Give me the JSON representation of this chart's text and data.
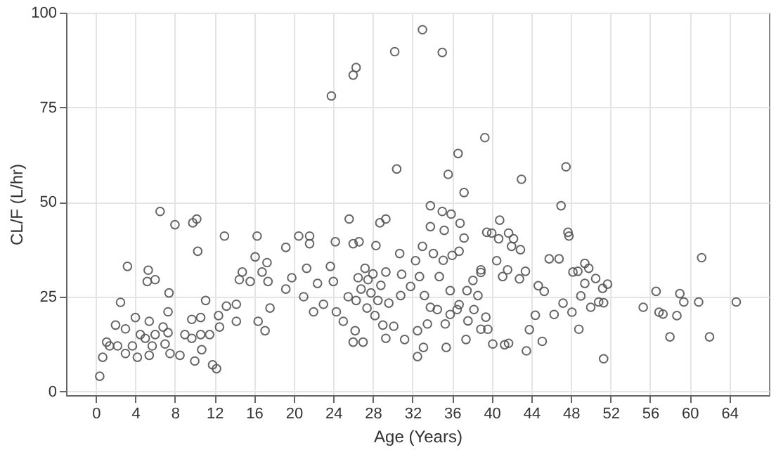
{
  "chart_data": {
    "type": "scatter",
    "xlabel": "Age (Years)",
    "ylabel": "CL/F (L/hr)",
    "xlim": [
      -3,
      68
    ],
    "xticks": [
      0,
      4,
      8,
      12,
      16,
      20,
      24,
      28,
      32,
      36,
      40,
      44,
      48,
      52,
      56,
      60,
      64
    ],
    "ylim": [
      -1,
      100
    ],
    "yticks": [
      0,
      25,
      50,
      75,
      100
    ],
    "grid": true,
    "marker": "circle",
    "series": [
      {
        "color": "#555555",
        "x": [
          0.4,
          0.7,
          1.1,
          1.4,
          2,
          2.2,
          2.5,
          3,
          3.2,
          3,
          3.7,
          4,
          4.2,
          4.5,
          5,
          5.3,
          5.2,
          5.4,
          5.4,
          5.7,
          6,
          6,
          6.5,
          6.8,
          7,
          7.3,
          7.3,
          7.4,
          7.5,
          8,
          8.5,
          9,
          9.7,
          9.7,
          10,
          9.8,
          10.2,
          10.3,
          10.6,
          10.6,
          10.7,
          11.1,
          11.5,
          11.8,
          12.2,
          12.4,
          12.5,
          13,
          13.2,
          14.2,
          14.2,
          14.5,
          14.8,
          15.6,
          16.1,
          16.3,
          16.4,
          16.8,
          17.1,
          17.3,
          17.4,
          17.6,
          19.2,
          19.2,
          19.8,
          20.5,
          21,
          21.3,
          21.6,
          21.6,
          22,
          22.4,
          23,
          23.7,
          23.8,
          24.2,
          24,
          24.3,
          25,
          25.6,
          26,
          26.3,
          26,
          26.2,
          26,
          26.3,
          26.6,
          27,
          27.2,
          27.5,
          28.3,
          28.5,
          28.7,
          29.3,
          29,
          29.3,
          30.2,
          30.4,
          25.5,
          26.8,
          27.8,
          28,
          28.2,
          28.8,
          27.4,
          26.5,
          29.6,
          29.3,
          30.1,
          30.9,
          30.7,
          31.2,
          31.8,
          30.8,
          32.3,
          33,
          35,
          39.3,
          36.6,
          35.6,
          37.2,
          43,
          47.5,
          33.8,
          35,
          35.9,
          36.8,
          33.8,
          35.2,
          37.2,
          39.5,
          40.8,
          40,
          40.7,
          41.7,
          42.2,
          42.9,
          42,
          47,
          47.7,
          47.8,
          45.8,
          46.8,
          49.4,
          49.8,
          50.5,
          51.7,
          51.2,
          48.7,
          48.2,
          49.4,
          49,
          50,
          50.8,
          51.3,
          48.8,
          51.3,
          48.1,
          47.2,
          46.3,
          45.1,
          43.5,
          43.8,
          44.4,
          45.3,
          44.7,
          43.4,
          42.8,
          41.6,
          41.1,
          40.5,
          41.3,
          41.7,
          40.1,
          39.6,
          38.9,
          39.4,
          38.6,
          38.9,
          38.1,
          37.5,
          37.6,
          37.4,
          36.5,
          35.8,
          35.3,
          35.4,
          33.1,
          32.5,
          32.5,
          33.5,
          33.8,
          33.2,
          32.7,
          33,
          34.1,
          35.1,
          36,
          36.7,
          38.9,
          34.7,
          35.8,
          34.5,
          36.7,
          38.2,
          55.3,
          56.6,
          56.9,
          57.3,
          58,
          58.7,
          59,
          59.4,
          60.9,
          61.2,
          62,
          64.7
        ],
        "values": [
          4,
          9,
          13,
          12,
          17.5,
          12,
          23.5,
          16.5,
          33,
          10,
          12,
          19.5,
          9,
          15,
          14,
          32,
          29,
          18.5,
          9.5,
          12,
          15,
          29.5,
          47.5,
          17,
          12.5,
          21,
          15.5,
          26,
          10,
          44,
          9.5,
          15,
          19,
          14,
          8,
          44.5,
          45.5,
          37,
          19.5,
          15,
          11,
          24,
          15,
          7,
          6,
          20,
          17,
          41,
          22.5,
          23,
          18.5,
          29.5,
          31.5,
          29,
          35.5,
          41,
          18.5,
          31.5,
          16,
          34,
          29,
          22,
          38,
          27,
          30,
          41,
          25,
          32.5,
          41,
          39,
          21,
          28.5,
          23,
          33,
          78,
          39.5,
          29,
          21,
          18.5,
          45.5,
          83.5,
          85.5,
          39,
          16,
          13,
          24,
          39.5,
          13,
          32.5,
          29.5,
          38.5,
          24,
          44.5,
          45.5,
          17.5,
          14,
          89.7,
          58.7,
          25,
          27,
          26,
          31,
          20,
          28,
          22,
          30,
          23.3,
          31.5,
          17.2,
          30.9,
          36.4,
          13.7,
          27.7,
          25.3,
          34.5,
          95.5,
          89.5,
          67,
          62.8,
          57.3,
          52.5,
          56,
          59.3,
          49,
          47.5,
          46.8,
          44.4,
          43.5,
          42.5,
          40.5,
          42,
          45.2,
          41.8,
          40.3,
          41.8,
          40.3,
          37.4,
          38.3,
          49,
          42,
          41,
          35,
          35,
          33.8,
          32.5,
          29.8,
          28.3,
          27.2,
          31.7,
          31.5,
          28.5,
          25.2,
          22.2,
          23.6,
          23.4,
          16.4,
          8.6,
          20.9,
          23.3,
          20.3,
          13.2,
          10.7,
          16.3,
          20.1,
          26.4,
          27.9,
          31.7,
          29.7,
          32.1,
          30.3,
          34.5,
          12.3,
          12.7,
          12.5,
          16.4,
          16.4,
          19.6,
          25.3,
          32.1,
          29.3,
          26.6,
          18.6,
          13.7,
          21.6,
          20.3,
          17.8,
          11.6,
          11.6,
          9.2,
          16,
          17.8,
          22.2,
          25.3,
          30.3,
          38.3,
          36.4,
          34.6,
          35.9,
          37,
          31.4,
          30.3,
          26.6,
          21.6,
          22.9,
          21.6,
          22.2,
          26.4,
          20.9,
          20.4,
          14.4,
          20,
          25.8,
          23.6,
          23.6,
          35.3,
          14.4,
          23.6
        ]
      }
    ]
  }
}
